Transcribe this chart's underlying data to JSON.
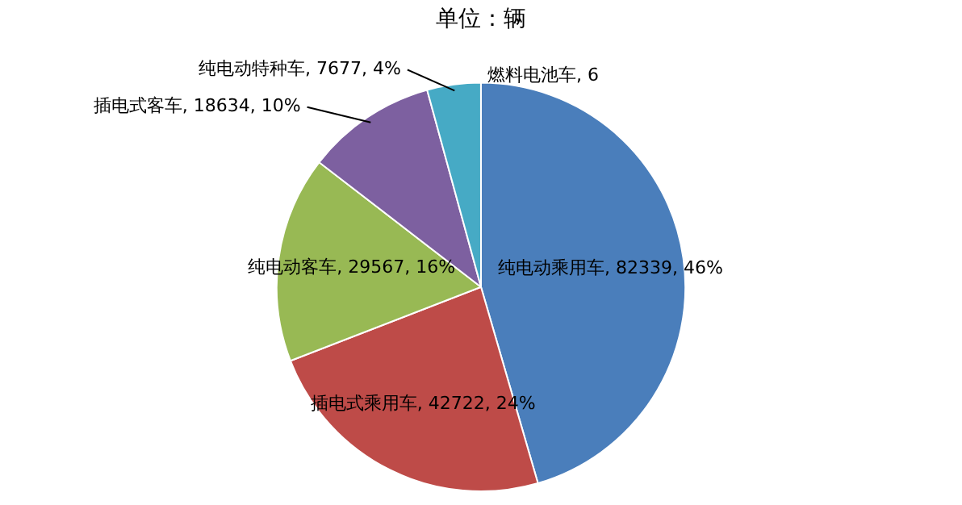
{
  "chart_data": {
    "type": "pie",
    "title": "单位：辆",
    "categories": [
      "纯电动乘用车",
      "插电式乘用车",
      "纯电动客车",
      "插电式客车",
      "纯电动特种车",
      "燃料电池车"
    ],
    "values": [
      82339,
      42722,
      29567,
      18634,
      7677,
      6
    ],
    "colors": [
      "#4a7ebb",
      "#be4b48",
      "#98b954",
      "#7d60a0",
      "#46aac5",
      "#f79646"
    ],
    "value_labels": [
      "82339, 46%",
      "42722, 24%",
      "29567, 16%",
      "18634, 10%",
      "7677, 4%",
      "6"
    ],
    "legend": false
  }
}
